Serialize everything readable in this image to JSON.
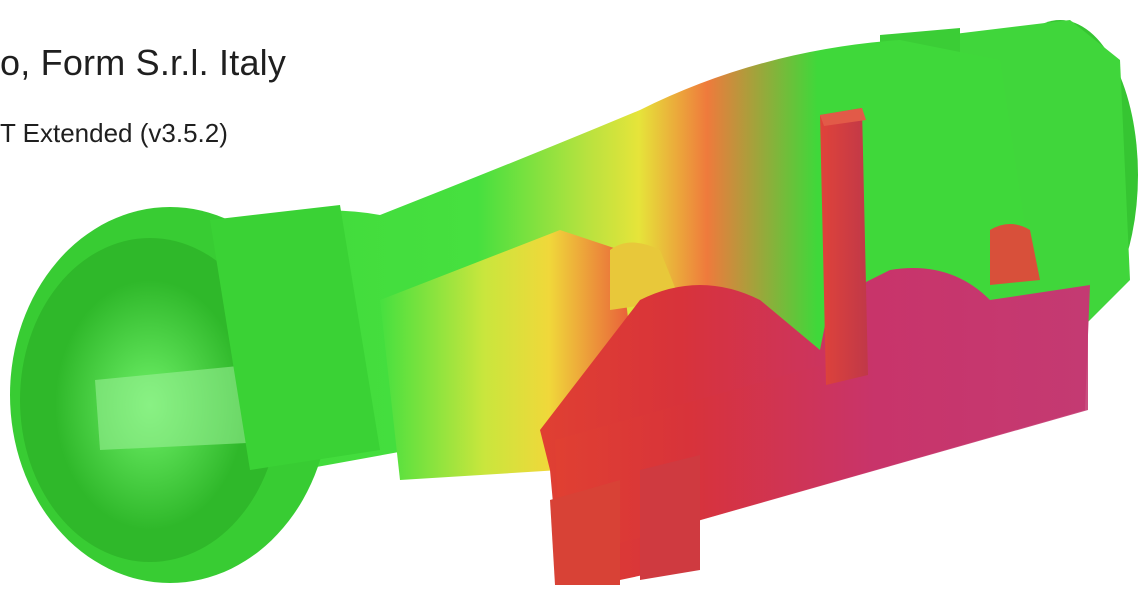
{
  "caption": {
    "title": "o, Form S.r.l. Italy",
    "subtitle": "T Extended (v3.5.2)"
  },
  "render": {
    "gradient_colors": {
      "green": "#3fd83a",
      "green_dark": "#2fae2a",
      "yellow": "#e6e43a",
      "orange": "#ef7a3c",
      "red": "#d8333a",
      "magenta": "#c43a72"
    }
  }
}
